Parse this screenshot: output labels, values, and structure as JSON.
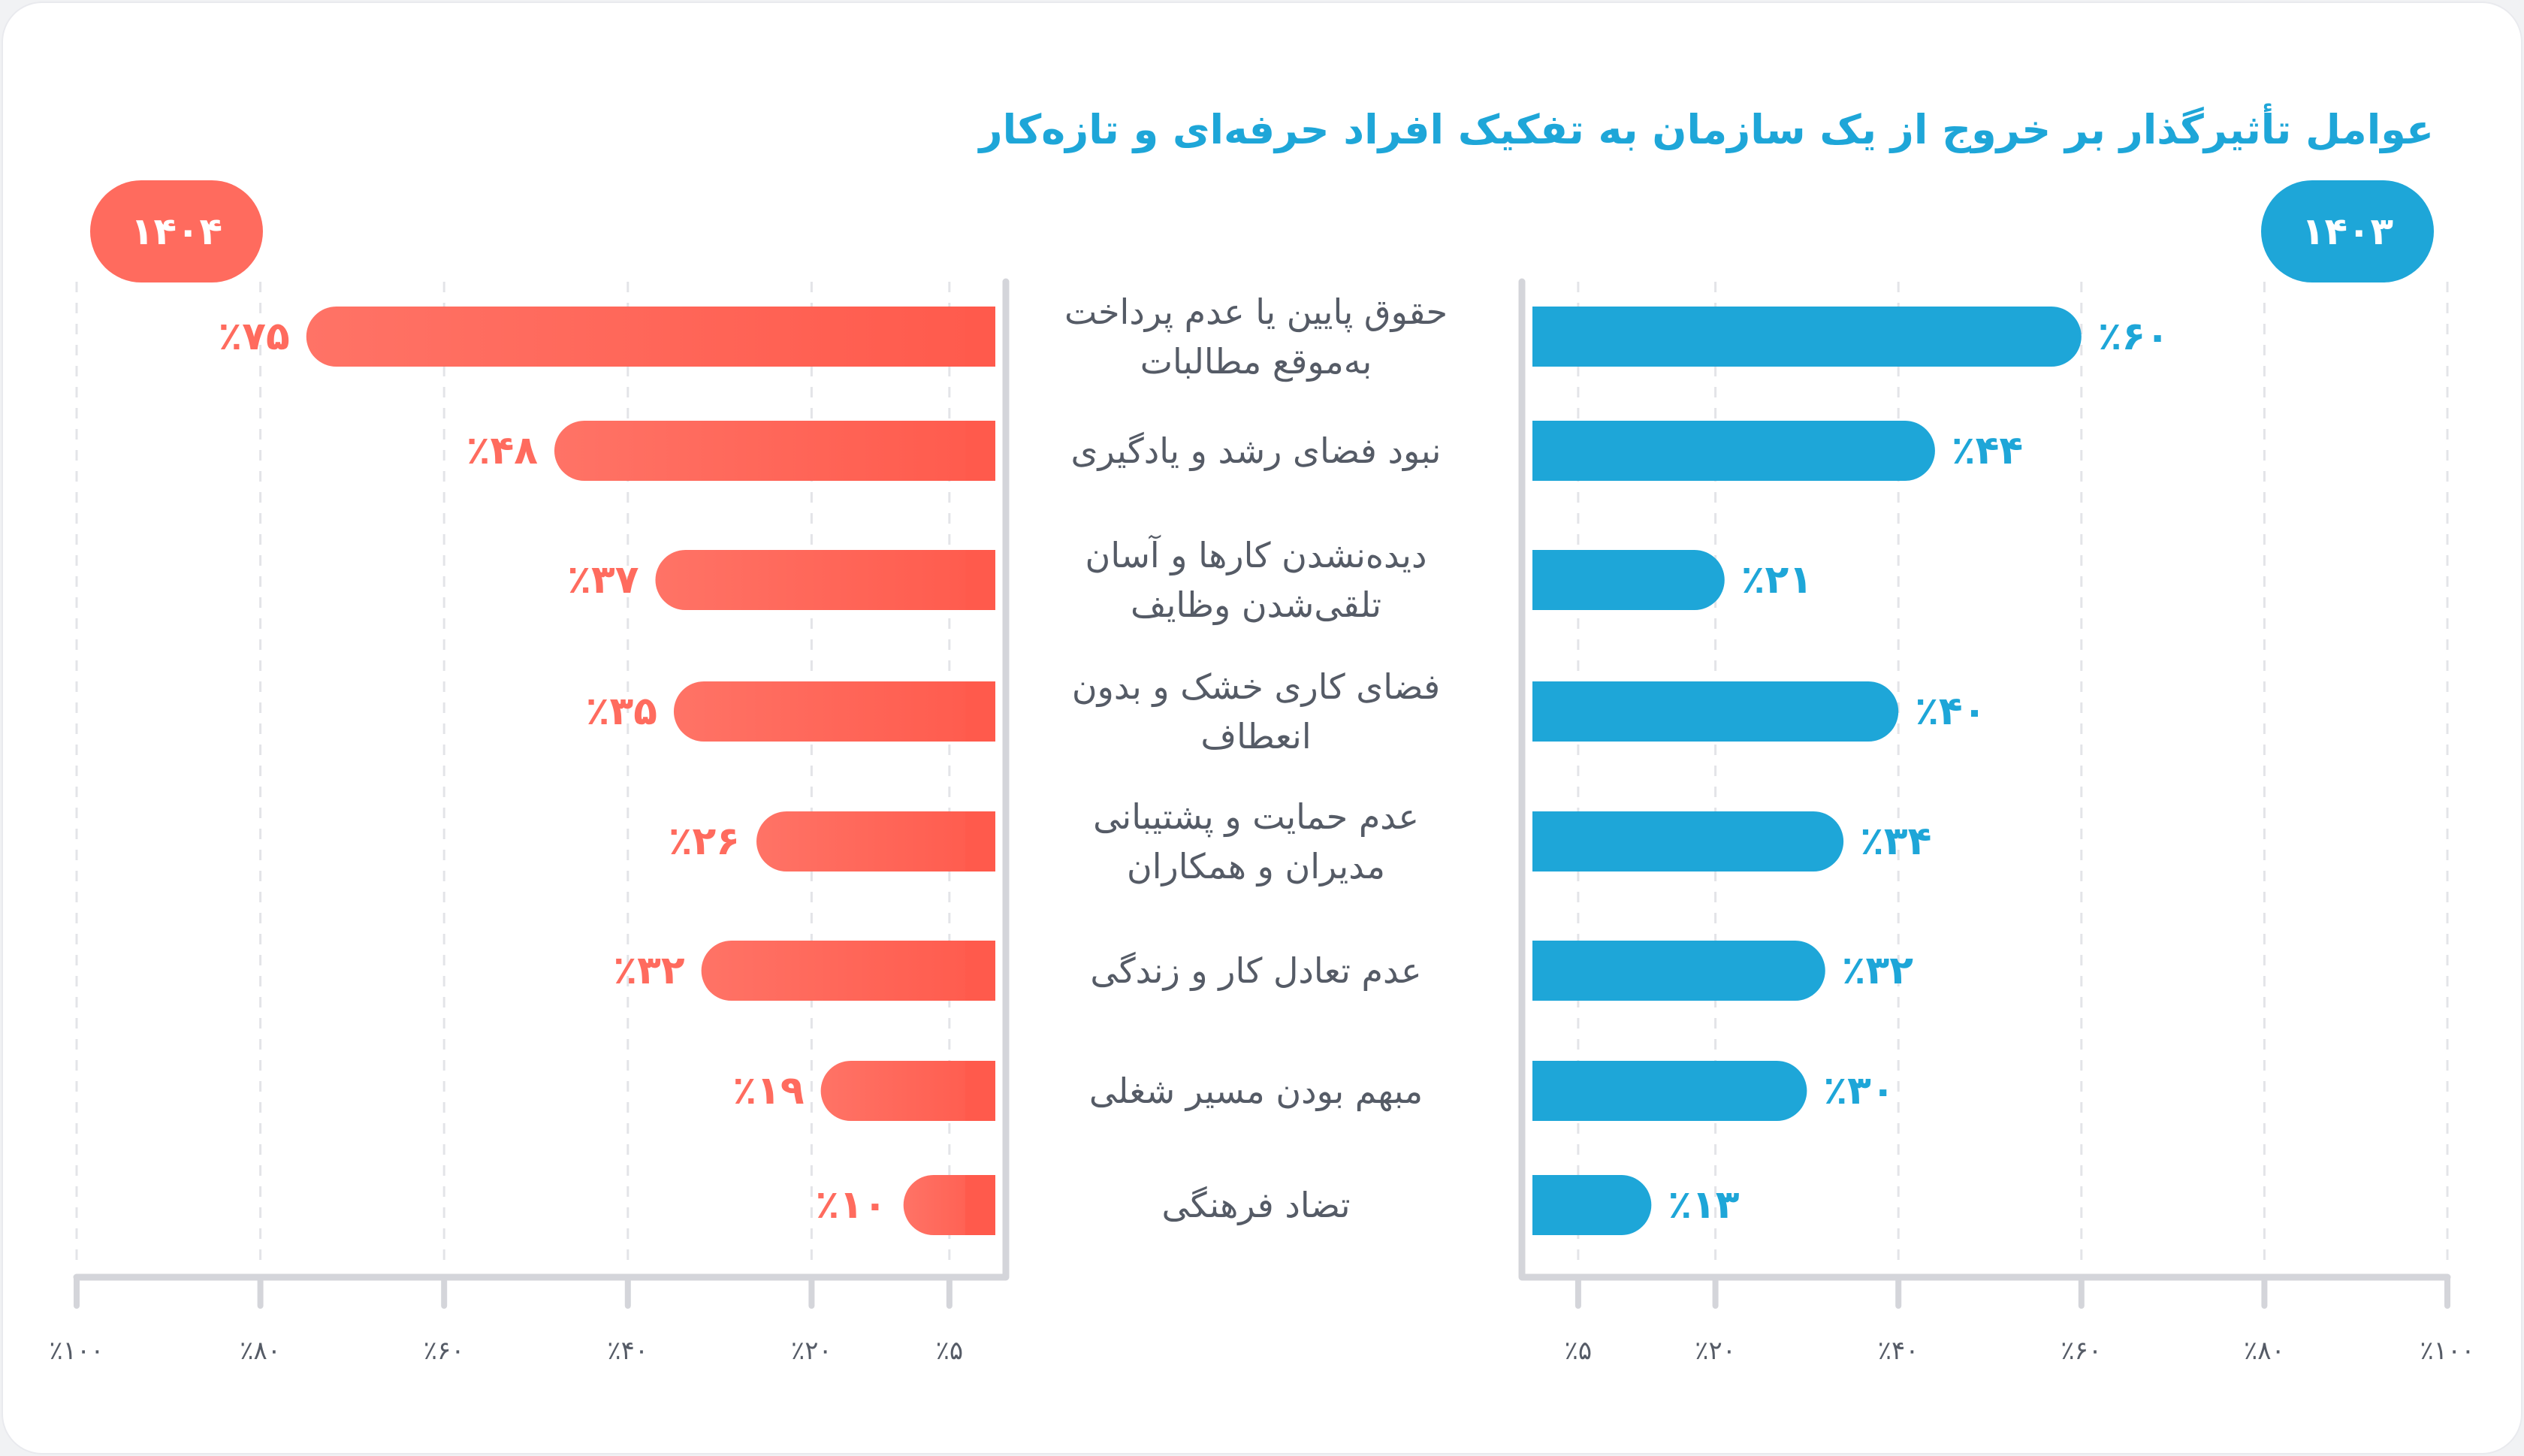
{
  "chart_data": {
    "type": "bar",
    "title": "عوامل تأثیرگذار بر خروج از یک سازمان به تفکیک افراد حرفه‌ای و تازه‌کار",
    "categories": [
      [
        "حقوق پایین یا عدم پرداخت",
        "به‌موقع مطالبات"
      ],
      [
        "نبود فضای رشد و یادگیری"
      ],
      [
        "دیده‌نشدن کارها و آسان",
        "تلقی‌شدن وظایف"
      ],
      [
        "فضای کاری خشک و بدون",
        "انعطاف"
      ],
      [
        "عدم حمایت و پشتیبانی",
        "مدیران و همکاران"
      ],
      [
        "عدم تعادل کار و زندگی"
      ],
      [
        "مبهم بودن مسیر شغلی"
      ],
      [
        "تضاد فرهنگی"
      ]
    ],
    "series": [
      {
        "name": "۱۴۰۴",
        "color": "#ff6b5e",
        "values": [
          75,
          48,
          37,
          35,
          26,
          32,
          19,
          10
        ],
        "value_labels": [
          "٪۷۵",
          "٪۴۸",
          "٪۳۷",
          "٪۳۵",
          "٪۲۶",
          "٪۳۲",
          "٪۱۹",
          "٪۱۰"
        ]
      },
      {
        "name": "۱۴۰۳",
        "color": "#1ea6d8",
        "values": [
          60,
          44,
          21,
          40,
          34,
          32,
          30,
          13
        ],
        "value_labels": [
          "٪۶۰",
          "٪۴۴",
          "٪۲۱",
          "٪۴۰",
          "٪۳۴",
          "٪۳۲",
          "٪۳۰",
          "٪۱۳"
        ]
      }
    ],
    "xlim": [
      0,
      100
    ],
    "tick_values": [
      5,
      20,
      40,
      60,
      80,
      100
    ],
    "tick_labels": [
      "٪۵",
      "٪۲۰",
      "٪۴۰",
      "٪۶۰",
      "٪۸۰",
      "٪۱۰۰"
    ],
    "grid": true
  }
}
